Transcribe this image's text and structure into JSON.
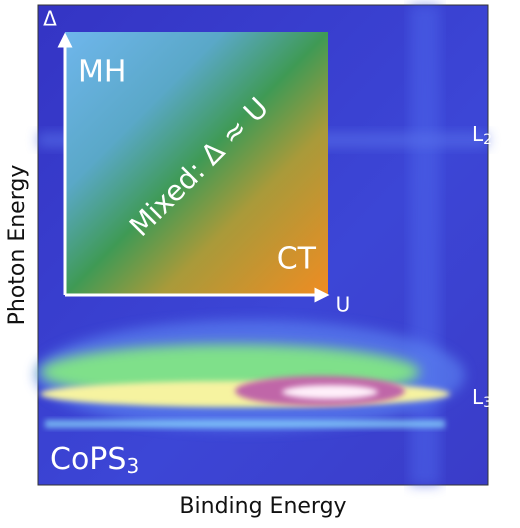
{
  "axes": {
    "x_label": "Binding Energy",
    "y_label": "Photon Energy"
  },
  "sample": {
    "name": "CoPS",
    "subscript": "3"
  },
  "edges": [
    {
      "name": "L",
      "subscript": "2"
    },
    {
      "name": "L",
      "subscript": "3"
    }
  ],
  "inset": {
    "y_axis": "Δ",
    "x_axis": "U",
    "top_left": "MH",
    "bottom_right": "CT",
    "diagonal": "Mixed: Δ ≈ U"
  }
}
